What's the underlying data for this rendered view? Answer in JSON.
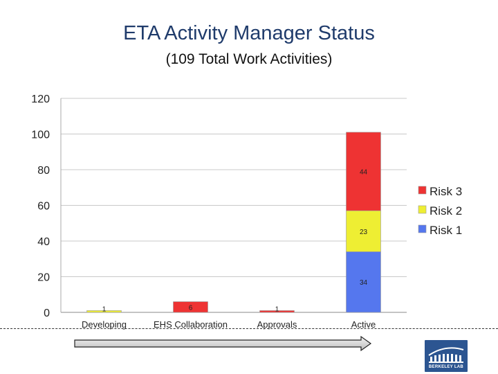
{
  "title": "ETA Activity Manager Status",
  "subtitle": "(109 Total Work Activities)",
  "logo_text": "BERKELEY LAB",
  "colors": {
    "risk3": "#ee3333",
    "risk2": "#eeee33",
    "risk1": "#5577ee",
    "title": "#1f3b6b"
  },
  "chart_data": {
    "type": "bar",
    "stacked": true,
    "categories": [
      "Developing",
      "EHS Collaboration",
      "Approvals",
      "Active"
    ],
    "series": [
      {
        "name": "Risk 1",
        "color": "#5577ee",
        "values": [
          0,
          0,
          0,
          34
        ]
      },
      {
        "name": "Risk 2",
        "color": "#eeee33",
        "values": [
          1,
          0,
          0,
          23
        ]
      },
      {
        "name": "Risk 3",
        "color": "#ee3333",
        "values": [
          0,
          6,
          1,
          44
        ]
      }
    ],
    "yticks": [
      0,
      20,
      40,
      60,
      80,
      100,
      120
    ],
    "ylim": [
      0,
      120
    ],
    "grid": true,
    "legend": "right"
  }
}
